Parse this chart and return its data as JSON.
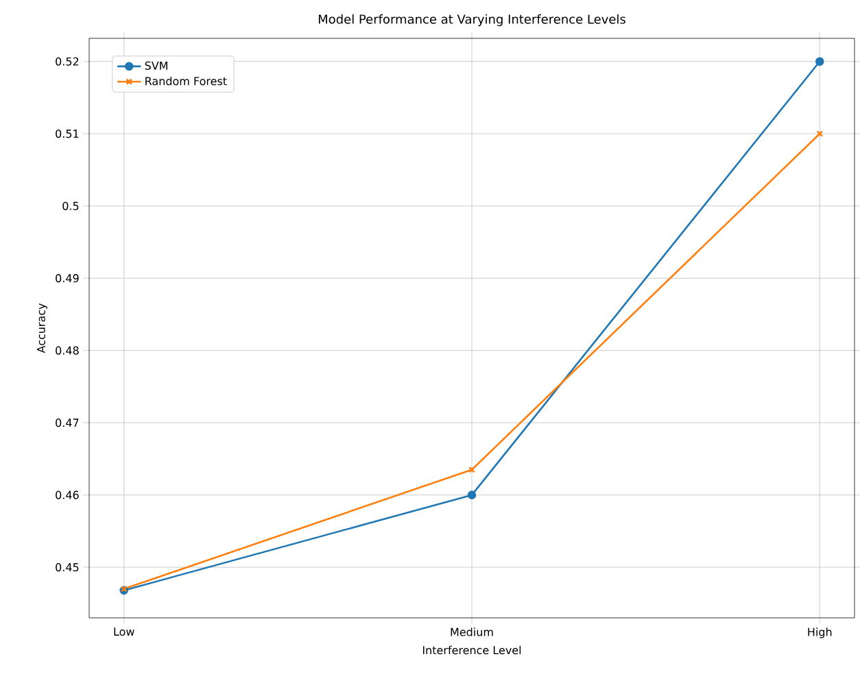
{
  "chart_data": {
    "type": "line",
    "title": "Model Performance at Varying Interference Levels",
    "xlabel": "Interference Level",
    "ylabel": "Accuracy",
    "categories": [
      "Low",
      "Medium",
      "High"
    ],
    "series": [
      {
        "name": "SVM",
        "color": "#1f77b4",
        "marker": "circle",
        "values": [
          0.4468,
          0.46,
          0.52
        ]
      },
      {
        "name": "Random Forest",
        "color": "#ff7f0e",
        "marker": "cross",
        "values": [
          0.447,
          0.4635,
          0.51
        ]
      }
    ],
    "ylim": [
      0.443,
      0.5232
    ],
    "yticks": [
      0.45,
      0.46,
      0.47,
      0.48,
      0.49,
      0.5,
      0.51,
      0.52
    ],
    "grid": true,
    "legend": "top left",
    "line_style": "solid"
  }
}
